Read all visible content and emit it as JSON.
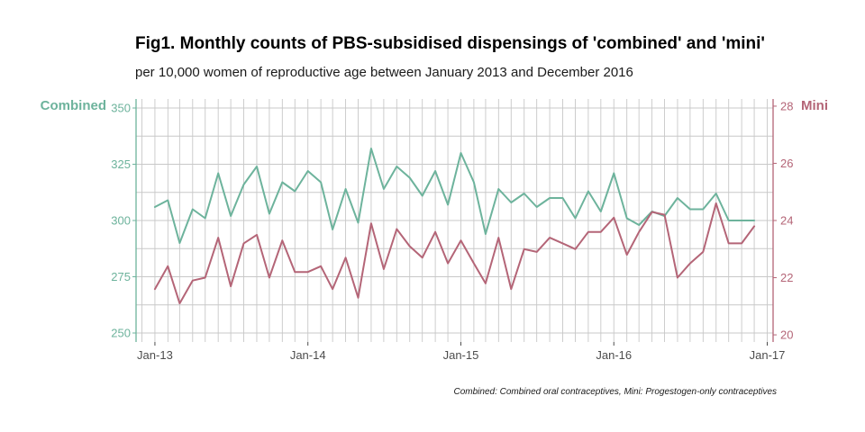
{
  "chart_data": {
    "type": "line",
    "title": "Fig1. Monthly counts of PBS-subsidised dispensings of 'combined' and 'mini'",
    "subtitle": "per 10,000 women of reproductive age between January 2013 and December 2016",
    "caption": "Combined: Combined oral contraceptives, Mini: Progestogen-only contraceptives",
    "ylabel_left": "Combined",
    "ylabel_right": "Mini",
    "x_ticks": [
      "Jan-13",
      "Jan-14",
      "Jan-15",
      "Jan-16",
      "Jan-17"
    ],
    "y_left_ticks": [
      250,
      275,
      300,
      325,
      350
    ],
    "y_right_ticks": [
      20,
      22,
      24,
      26,
      28
    ],
    "ylim_left": [
      246,
      354
    ],
    "ylim_right": [
      19.75,
      28.25
    ],
    "xlim": [
      "2012-11-17",
      "2017-01-15"
    ],
    "grid": true,
    "colors": {
      "combined": "#6db39c",
      "mini": "#b46577",
      "grid": "#c8c8c8"
    },
    "series": [
      {
        "name": "Combined",
        "axis": "left",
        "x": [
          "2013-01",
          "2013-02",
          "2013-03",
          "2013-04",
          "2013-05",
          "2013-06",
          "2013-07",
          "2013-08",
          "2013-09",
          "2013-10",
          "2013-11",
          "2013-12",
          "2014-01",
          "2014-02",
          "2014-03",
          "2014-04",
          "2014-05",
          "2014-06",
          "2014-07",
          "2014-08",
          "2014-09",
          "2014-10",
          "2014-11",
          "2014-12",
          "2015-01",
          "2015-02",
          "2015-03",
          "2015-04",
          "2015-05",
          "2015-06",
          "2015-07",
          "2015-08",
          "2015-09",
          "2015-10",
          "2015-11",
          "2015-12",
          "2016-01",
          "2016-02",
          "2016-03",
          "2016-04",
          "2016-05",
          "2016-06",
          "2016-07",
          "2016-08",
          "2016-09",
          "2016-10",
          "2016-11",
          "2016-12"
        ],
        "values": [
          306,
          309,
          290,
          305,
          301,
          321,
          302,
          316,
          324,
          303,
          317,
          313,
          322,
          317,
          296,
          314,
          299,
          332,
          314,
          324,
          319,
          311,
          322,
          307,
          330,
          317,
          294,
          314,
          308,
          312,
          306,
          310,
          310,
          301,
          313,
          304,
          321,
          301,
          298,
          304,
          302,
          310,
          305,
          305,
          312,
          300,
          300,
          300
        ]
      },
      {
        "name": "Mini",
        "axis": "right",
        "x": [
          "2013-01",
          "2013-02",
          "2013-03",
          "2013-04",
          "2013-05",
          "2013-06",
          "2013-07",
          "2013-08",
          "2013-09",
          "2013-10",
          "2013-11",
          "2013-12",
          "2014-01",
          "2014-02",
          "2014-03",
          "2014-04",
          "2014-05",
          "2014-06",
          "2014-07",
          "2014-08",
          "2014-09",
          "2014-10",
          "2014-11",
          "2014-12",
          "2015-01",
          "2015-02",
          "2015-03",
          "2015-04",
          "2015-05",
          "2015-06",
          "2015-07",
          "2015-08",
          "2015-09",
          "2015-10",
          "2015-11",
          "2015-12",
          "2016-01",
          "2016-02",
          "2016-03",
          "2016-04",
          "2016-05",
          "2016-06",
          "2016-07",
          "2016-08",
          "2016-09",
          "2016-10",
          "2016-11",
          "2016-12"
        ],
        "values": [
          21.6,
          22.4,
          21.1,
          21.9,
          22.0,
          23.4,
          21.7,
          23.2,
          23.5,
          22.0,
          23.3,
          22.2,
          22.2,
          22.4,
          21.6,
          22.7,
          21.3,
          23.9,
          22.3,
          23.7,
          23.1,
          22.7,
          23.6,
          22.5,
          23.3,
          22.5,
          21.8,
          23.4,
          21.6,
          23.0,
          22.9,
          23.4,
          23.2,
          23.0,
          23.6,
          23.6,
          24.1,
          22.8,
          23.6,
          24.3,
          24.2,
          22.0,
          22.5,
          22.9,
          24.6,
          23.2,
          23.2,
          23.8
        ]
      }
    ]
  }
}
